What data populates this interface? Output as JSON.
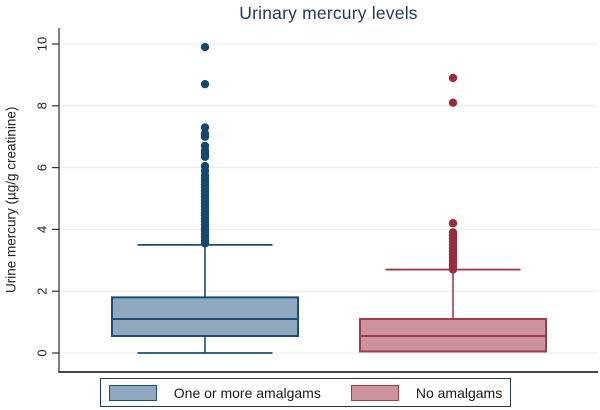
{
  "chart_data": {
    "type": "box",
    "title": "Urinary mercury levels",
    "ylabel": "Urine mercury (µg/g creatinine)",
    "xlabel": "",
    "yticks": [
      0,
      2,
      4,
      6,
      8,
      10
    ],
    "ylim": [
      0,
      10
    ],
    "grid": "horizontal",
    "legend_position": "bottom",
    "colors": {
      "title": "#1F3864",
      "axis": "#2E2E2E",
      "grid": "#E8EBEE",
      "tick_label": "#262626",
      "legend_border": "#253852",
      "background": "#FFFFFF"
    },
    "series": [
      {
        "name": "One or more amalgams",
        "fill": "#8FA8BE",
        "stroke": "#1D4E79",
        "outlier_color": "#15476F",
        "whisker_low": 0,
        "q1": 0.55,
        "median": 1.1,
        "q3": 1.8,
        "whisker_high": 3.5,
        "outliers": [
          9.9,
          8.7,
          7.3,
          7.1,
          7.0,
          6.7,
          6.55,
          6.45,
          6.35,
          6.05,
          5.9,
          5.75,
          5.65,
          5.55,
          5.45,
          5.35,
          5.25,
          5.15,
          5.05,
          4.95,
          4.85,
          4.75,
          4.65,
          4.55,
          4.45,
          4.35,
          4.25,
          4.15,
          4.05,
          3.95,
          3.85,
          3.75,
          3.65,
          3.55
        ]
      },
      {
        "name": "No amalgams",
        "fill": "#CC939A",
        "stroke": "#9E3D4C",
        "outlier_color": "#992C3E",
        "whisker_low": 0.05,
        "q1": 0.05,
        "median": 0.55,
        "q3": 1.1,
        "whisker_high": 2.7,
        "outliers": [
          8.9,
          8.1,
          4.2,
          3.9,
          3.8,
          3.7,
          3.6,
          3.5,
          3.4,
          3.3,
          3.2,
          3.1,
          3.0,
          2.9,
          2.8,
          2.7
        ]
      }
    ]
  }
}
